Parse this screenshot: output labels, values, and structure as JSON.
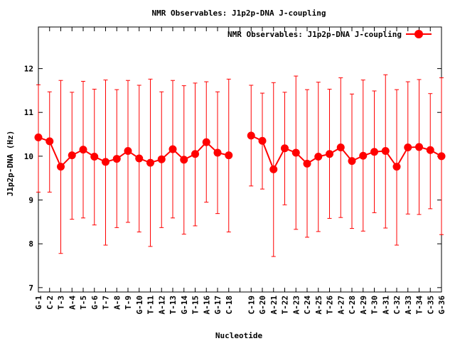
{
  "chart_data": {
    "type": "line",
    "title": "NMR Observables: J1p2p-DNA J-coupling",
    "xlabel": "Nucleotide",
    "ylabel": "J1p2p-DNA (Hz)",
    "ylim": [
      6.9,
      12.95
    ],
    "yticks": [
      7,
      8,
      9,
      10,
      11,
      12
    ],
    "grid": false,
    "legend_position": "top-right",
    "categories": [
      "G-1",
      "C-2",
      "T-3",
      "A-4",
      "T-5",
      "G-6",
      "T-7",
      "A-8",
      "T-9",
      "G-10",
      "T-11",
      "A-12",
      "T-13",
      "G-14",
      "T-15",
      "A-16",
      "G-17",
      "C-18",
      "",
      "C-19",
      "G-20",
      "A-21",
      "T-22",
      "A-23",
      "C-24",
      "A-25",
      "T-26",
      "A-27",
      "C-28",
      "A-29",
      "T-30",
      "A-31",
      "C-32",
      "A-33",
      "T-34",
      "C-35",
      "G-36"
    ],
    "series": [
      {
        "name": "NMR Observables: J1p2p-DNA J-coupling",
        "color": "#ff0000",
        "values": [
          10.43,
          10.34,
          9.76,
          10.02,
          10.15,
          9.99,
          9.87,
          9.94,
          10.12,
          9.95,
          9.85,
          9.93,
          10.16,
          9.92,
          10.05,
          10.32,
          10.08,
          10.02,
          null,
          10.47,
          10.35,
          9.7,
          10.18,
          10.08,
          9.83,
          9.99,
          10.05,
          10.2,
          9.89,
          10.01,
          10.1,
          10.12,
          9.76,
          10.2,
          10.21,
          10.14,
          10.0
        ],
        "error_upper": [
          11.63,
          11.47,
          11.73,
          11.46,
          11.71,
          11.53,
          11.74,
          11.52,
          11.73,
          11.62,
          11.76,
          11.47,
          11.73,
          11.61,
          11.67,
          11.7,
          11.47,
          11.76,
          null,
          11.62,
          11.44,
          11.68,
          11.46,
          11.83,
          11.52,
          11.69,
          11.53,
          11.79,
          11.42,
          11.74,
          11.49,
          11.86,
          11.52,
          11.7,
          11.75,
          11.43,
          11.79
        ],
        "error_lower": [
          9.18,
          9.18,
          7.78,
          8.56,
          8.59,
          8.43,
          7.97,
          8.37,
          8.49,
          8.27,
          7.94,
          8.37,
          8.59,
          8.22,
          8.41,
          8.95,
          8.69,
          8.27,
          null,
          9.32,
          9.25,
          7.71,
          8.89,
          8.33,
          8.15,
          8.28,
          8.58,
          8.6,
          8.35,
          8.29,
          8.71,
          8.36,
          7.97,
          8.68,
          8.67,
          8.8,
          8.21
        ]
      }
    ]
  }
}
